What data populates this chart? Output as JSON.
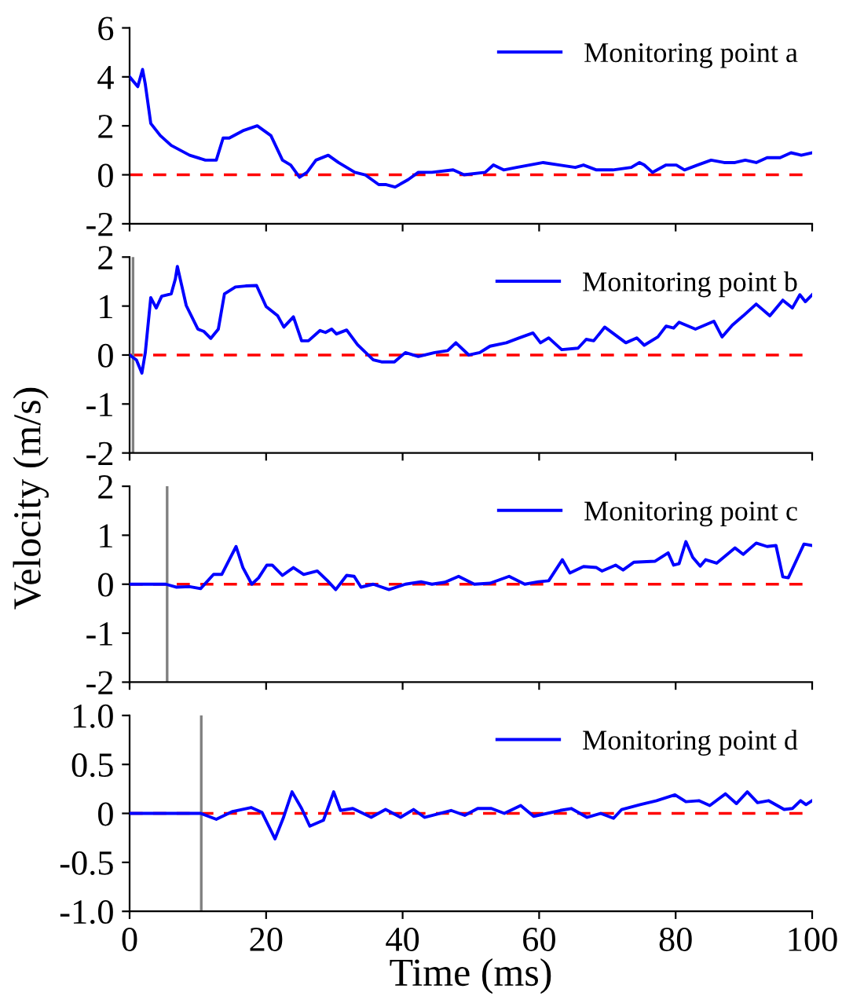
{
  "chart_data": [
    {
      "type": "line",
      "x": [
        0,
        1.2,
        1.9,
        2.3,
        3.1,
        4.5,
        6.1,
        8.8,
        11.1,
        12.7,
        13.7,
        14.6,
        16.6,
        18.7,
        20.7,
        22.4,
        23.6,
        24.9,
        26,
        27.3,
        29.1,
        30.6,
        33,
        34.5,
        36.5,
        37.6,
        38.9,
        40.8,
        42.3,
        44.3,
        47.4,
        49,
        52.1,
        53.3,
        54.8,
        56.7,
        60.6,
        63,
        65.3,
        66.5,
        68.4,
        70.8,
        73.5,
        74.7,
        75.4,
        76.6,
        78.6,
        80.1,
        81.3,
        83.2,
        85.2,
        87.1,
        88.7,
        90.2,
        91.8,
        93.4,
        95.3,
        96.9,
        98.4,
        100
      ],
      "series": [
        {
          "name": "Monitoring point a",
          "color": "#0000ff",
          "values": [
            4.0,
            3.6,
            4.3,
            3.7,
            2.1,
            1.6,
            1.2,
            0.8,
            0.6,
            0.6,
            1.5,
            1.5,
            1.8,
            2.0,
            1.6,
            0.6,
            0.4,
            -0.1,
            0.1,
            0.6,
            0.8,
            0.5,
            0.1,
            0.0,
            -0.4,
            -0.4,
            -0.5,
            -0.2,
            0.1,
            0.1,
            0.2,
            0.0,
            0.1,
            0.4,
            0.2,
            0.3,
            0.5,
            0.4,
            0.3,
            0.4,
            0.2,
            0.2,
            0.3,
            0.5,
            0.4,
            0.1,
            0.4,
            0.4,
            0.2,
            0.4,
            0.6,
            0.5,
            0.5,
            0.6,
            0.5,
            0.7,
            0.7,
            0.9,
            0.8,
            0.9
          ]
        }
      ],
      "xlim": [
        0,
        100
      ],
      "ylim": [
        -2,
        6
      ],
      "yticks": [
        -2,
        0,
        2,
        4,
        6
      ],
      "xticks": [
        0,
        20,
        40,
        60,
        80,
        100
      ],
      "tick_labels": "y",
      "legend": "top right",
      "ref_lines": [
        {
          "axis": "y",
          "value": 0,
          "color": "#ff0000",
          "line_style": "dashed"
        }
      ]
    },
    {
      "type": "line",
      "x": [
        0,
        1,
        1.8,
        2.3,
        3.1,
        3.9,
        4.7,
        6.1,
        6.7,
        7,
        7.6,
        8.3,
        10,
        10.9,
        11.9,
        13,
        13.9,
        15.5,
        17,
        18.6,
        20,
        21.7,
        22.6,
        24,
        25.2,
        26.2,
        27.9,
        28.7,
        29.6,
        30.3,
        31.8,
        33.4,
        35.7,
        36.9,
        38.8,
        40.4,
        42.3,
        44.7,
        46.6,
        47.8,
        49.7,
        51.3,
        52.8,
        55.2,
        57.1,
        59.1,
        60.2,
        61.4,
        63.3,
        65.7,
        66.9,
        68,
        69.6,
        72.7,
        74.3,
        75.4,
        77.4,
        78.6,
        79.7,
        80.5,
        82.9,
        85.6,
        86.8,
        88.3,
        89.9,
        91.8,
        93.8,
        95.7,
        97.1,
        98.2,
        99,
        100
      ],
      "series": [
        {
          "name": "Monitoring point b",
          "color": "#0000ff",
          "values": [
            0,
            -0.1,
            -0.37,
            0.05,
            1.17,
            0.96,
            1.2,
            1.25,
            1.55,
            1.81,
            1.44,
            1.01,
            0.53,
            0.48,
            0.34,
            0.53,
            1.25,
            1.39,
            1.41,
            1.42,
            0.99,
            0.8,
            0.57,
            0.78,
            0.29,
            0.29,
            0.5,
            0.46,
            0.53,
            0.43,
            0.51,
            0.21,
            -0.1,
            -0.14,
            -0.14,
            0.05,
            -0.03,
            0.05,
            0.09,
            0.25,
            0,
            0.05,
            0.18,
            0.25,
            0.35,
            0.45,
            0.25,
            0.35,
            0.11,
            0.14,
            0.32,
            0.29,
            0.57,
            0.25,
            0.35,
            0.2,
            0.37,
            0.59,
            0.55,
            0.67,
            0.53,
            0.69,
            0.37,
            0.61,
            0.8,
            1.04,
            0.8,
            1.12,
            0.96,
            1.23,
            1.09,
            1.23
          ]
        }
      ],
      "xlim": [
        0,
        100
      ],
      "ylim": [
        -2,
        2
      ],
      "yticks": [
        -2,
        -1,
        0,
        1,
        2
      ],
      "xticks": [
        0,
        20,
        40,
        60,
        80,
        100
      ],
      "tick_labels": "y",
      "legend": "top right",
      "ylabel": "Velocity (m/s)",
      "ref_lines": [
        {
          "axis": "y",
          "value": 0,
          "color": "#ff0000",
          "line_style": "dashed"
        },
        {
          "axis": "x",
          "value": 0.5,
          "color": "#808080",
          "line_style": "solid"
        }
      ]
    },
    {
      "type": "line",
      "x": [
        0,
        5.3,
        6.8,
        8.8,
        10.4,
        12.3,
        13.5,
        14.6,
        15.6,
        16.6,
        17.9,
        18.9,
        20.1,
        20.9,
        22.4,
        24,
        25.5,
        27.5,
        29,
        30.2,
        31.8,
        32.9,
        33.9,
        35.7,
        38,
        40.4,
        42.7,
        44.3,
        46.2,
        48.2,
        50.5,
        52.8,
        55.6,
        57.9,
        59.9,
        61.4,
        63.4,
        64.5,
        66.5,
        68.4,
        69.2,
        71.2,
        72.3,
        73.9,
        77,
        78.9,
        79.7,
        80.5,
        81.5,
        82.5,
        83.6,
        84.4,
        86,
        88.7,
        89.9,
        91.8,
        93.4,
        94.7,
        95.7,
        96.5,
        98.8,
        100
      ],
      "series": [
        {
          "name": "Monitoring point c",
          "color": "#0000ff",
          "values": [
            0,
            0,
            -0.06,
            -0.05,
            -0.09,
            0.2,
            0.2,
            0.5,
            0.77,
            0.34,
            0,
            0.13,
            0.39,
            0.39,
            0.18,
            0.34,
            0.2,
            0.27,
            0.07,
            -0.11,
            0.18,
            0.16,
            -0.06,
            0,
            -0.11,
            0,
            0.05,
            0,
            0.04,
            0.16,
            0,
            0.02,
            0.16,
            0,
            0.05,
            0.07,
            0.5,
            0.23,
            0.36,
            0.34,
            0.27,
            0.39,
            0.29,
            0.45,
            0.47,
            0.64,
            0.39,
            0.42,
            0.87,
            0.55,
            0.37,
            0.5,
            0.43,
            0.74,
            0.61,
            0.84,
            0.77,
            0.79,
            0.15,
            0.13,
            0.82,
            0.79
          ]
        }
      ],
      "xlim": [
        0,
        100
      ],
      "ylim": [
        -2,
        2
      ],
      "yticks": [
        -2,
        -1,
        0,
        1,
        2
      ],
      "xticks": [
        0,
        20,
        40,
        60,
        80,
        100
      ],
      "tick_labels": "y",
      "legend": "top right",
      "ref_lines": [
        {
          "axis": "y",
          "value": 0,
          "color": "#ff0000",
          "line_style": "dashed"
        },
        {
          "axis": "x",
          "value": 5.5,
          "color": "#808080",
          "line_style": "solid"
        }
      ]
    },
    {
      "type": "line",
      "x": [
        0,
        10.4,
        12.7,
        15.1,
        17.8,
        19.4,
        21.3,
        22.5,
        23.8,
        25.2,
        26.4,
        28.4,
        29.9,
        30.9,
        32.7,
        35.4,
        37.5,
        39.7,
        41.6,
        43.2,
        47.1,
        49.1,
        51,
        53,
        54.9,
        57.3,
        59.2,
        63.1,
        64.7,
        67,
        69,
        70.9,
        72.1,
        74.8,
        77.2,
        79.9,
        81.5,
        83.4,
        85,
        87.3,
        88.9,
        90.5,
        92,
        93.6,
        95.9,
        97.1,
        98.3,
        99.1,
        100
      ],
      "series": [
        {
          "name": "Monitoring point d",
          "color": "#0000ff",
          "values": [
            0,
            0,
            -0.06,
            0.02,
            0.06,
            0.01,
            -0.26,
            -0.05,
            0.22,
            0.05,
            -0.13,
            -0.07,
            0.22,
            0.03,
            0.05,
            -0.04,
            0.04,
            -0.04,
            0.04,
            -0.04,
            0.03,
            -0.02,
            0.05,
            0.05,
            0,
            0.08,
            -0.03,
            0.03,
            0.05,
            -0.04,
            0,
            -0.05,
            0.04,
            0.09,
            0.13,
            0.19,
            0.12,
            0.13,
            0.08,
            0.2,
            0.1,
            0.22,
            0.11,
            0.13,
            0.04,
            0.05,
            0.13,
            0.09,
            0.13
          ]
        }
      ],
      "xlim": [
        0,
        100
      ],
      "ylim": [
        -1,
        1
      ],
      "yticks": [
        {
          "value": -1,
          "label": "-1.0"
        },
        {
          "value": -0.5,
          "label": "-0.5"
        },
        0,
        {
          "value": 0.5,
          "label": "0.5"
        },
        {
          "value": 1,
          "label": "1.0"
        }
      ],
      "xticks": [
        0,
        20,
        40,
        60,
        80,
        100
      ],
      "legend": "top right",
      "xlabel": "Time (ms)",
      "ref_lines": [
        {
          "axis": "y",
          "value": 0,
          "color": "#ff0000",
          "line_style": "dashed"
        },
        {
          "axis": "x",
          "value": 10.5,
          "color": "#808080",
          "line_style": "solid"
        }
      ]
    }
  ]
}
